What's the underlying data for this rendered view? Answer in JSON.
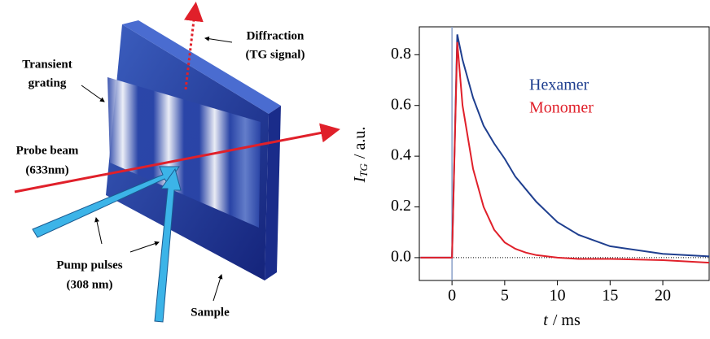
{
  "diagram": {
    "labels": [
      "Diffraction",
      "(TG signal)",
      "Transient",
      "grating",
      "Probe beam",
      "(633nm)",
      "Pump pulses",
      "(308 nm)",
      "Sample"
    ]
  },
  "chart_data": {
    "type": "line",
    "ylabel_symbol": "I",
    "ylabel_subscript": "TG",
    "ylabel_unit": "/ a.u.",
    "xlabel_symbol": "t",
    "xlabel_unit": "/ ms",
    "x": [
      -3,
      -1,
      0,
      0.5,
      1,
      2,
      3,
      4,
      5,
      6,
      7,
      8,
      10,
      12,
      15,
      20,
      24.4
    ],
    "series": [
      {
        "name": "Hexamer",
        "color": "#1f3f8f",
        "values": [
          0,
          0,
          0,
          0.88,
          0.78,
          0.63,
          0.52,
          0.45,
          0.39,
          0.32,
          0.27,
          0.22,
          0.14,
          0.09,
          0.045,
          0.015,
          0.005
        ]
      },
      {
        "name": "Monomer",
        "color": "#e0202a",
        "values": [
          0,
          0,
          0,
          0.85,
          0.6,
          0.35,
          0.2,
          0.11,
          0.06,
          0.035,
          0.02,
          0.01,
          0,
          -0.005,
          -0.005,
          -0.01,
          -0.02
        ]
      }
    ],
    "xlim": [
      -3.1,
      24.4
    ],
    "ylim": [
      -0.09,
      0.91
    ],
    "xticks": [
      0,
      5,
      10,
      15,
      20
    ],
    "yticks": [
      {
        "value": 0,
        "label": "0.0"
      },
      0.2,
      0.4,
      0.6,
      0.8
    ]
  }
}
